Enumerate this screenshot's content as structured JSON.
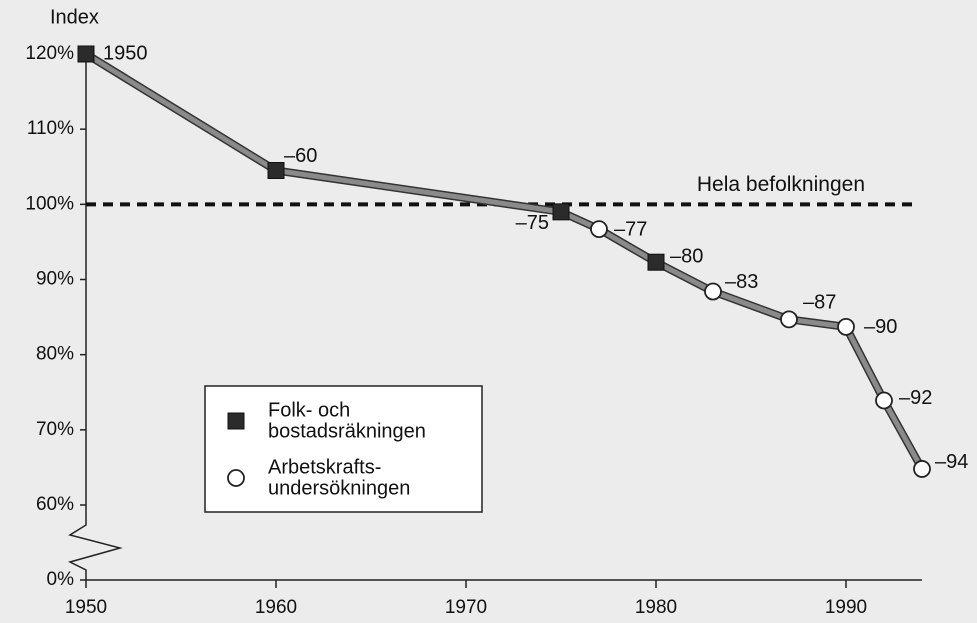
{
  "chart_data": {
    "type": "line",
    "y_label": "Index",
    "x": [
      1950,
      1960,
      1975,
      1977,
      1980,
      1983,
      1987,
      1990,
      1992,
      1994
    ],
    "values": [
      120,
      104.5,
      99,
      96.7,
      92.3,
      88.4,
      84.7,
      83.7,
      73.9,
      64.8
    ],
    "point_labels": [
      "1950",
      "–60",
      "–75",
      "–77",
      "–80",
      "–83",
      "–87",
      "–90",
      "–92",
      "–94"
    ],
    "markers": [
      "square",
      "square",
      "square",
      "circle",
      "square",
      "circle",
      "circle",
      "circle",
      "circle",
      "circle"
    ],
    "legend": [
      {
        "marker": "square",
        "lines": [
          "Folk- och",
          "bostadsräkningen"
        ]
      },
      {
        "marker": "circle",
        "lines": [
          "Arbetskrafts-",
          "undersökningen"
        ]
      }
    ],
    "color": "#8a8a8a",
    "xlim": [
      1950,
      1994
    ],
    "xticks": [
      1950,
      1960,
      1970,
      1980,
      1990
    ],
    "ylim": [
      0,
      120
    ],
    "axis_break": [
      0,
      60
    ],
    "yticks": [
      {
        "value": 0,
        "label": "0%"
      },
      {
        "value": 60,
        "label": "60%"
      },
      {
        "value": 70,
        "label": "70%"
      },
      {
        "value": 80,
        "label": "80%"
      },
      {
        "value": 90,
        "label": "90%"
      },
      {
        "value": 100,
        "label": "100%"
      },
      {
        "value": 110,
        "label": "110%"
      },
      {
        "value": 120,
        "label": "120%"
      }
    ],
    "reference_line": {
      "value": 100,
      "text": "Hela befolkningen"
    }
  }
}
